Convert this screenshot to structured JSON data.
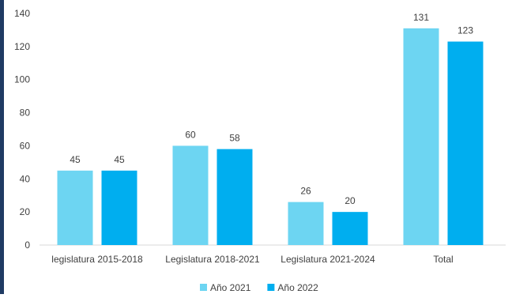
{
  "chart_data": {
    "type": "bar",
    "title": "",
    "xlabel": "",
    "ylabel": "",
    "ylim": [
      0,
      140
    ],
    "yticks": [
      0,
      20,
      40,
      60,
      80,
      100,
      120,
      140
    ],
    "grid": false,
    "legend_position": "bottom",
    "categories": [
      "legislatura 2015-2018",
      "Legislatura 2018-2021",
      "Legislatura 2021-2024",
      "Total"
    ],
    "series": [
      {
        "name": "Año 2021",
        "color": "#6dd5f2",
        "values": [
          45,
          60,
          26,
          131
        ]
      },
      {
        "name": "Año 2022",
        "color": "#00aeef",
        "values": [
          45,
          58,
          20,
          123
        ]
      }
    ]
  },
  "colors": {
    "frame_accent": "#1f3b63",
    "text": "#404040",
    "axis": "#d9d9d9"
  }
}
